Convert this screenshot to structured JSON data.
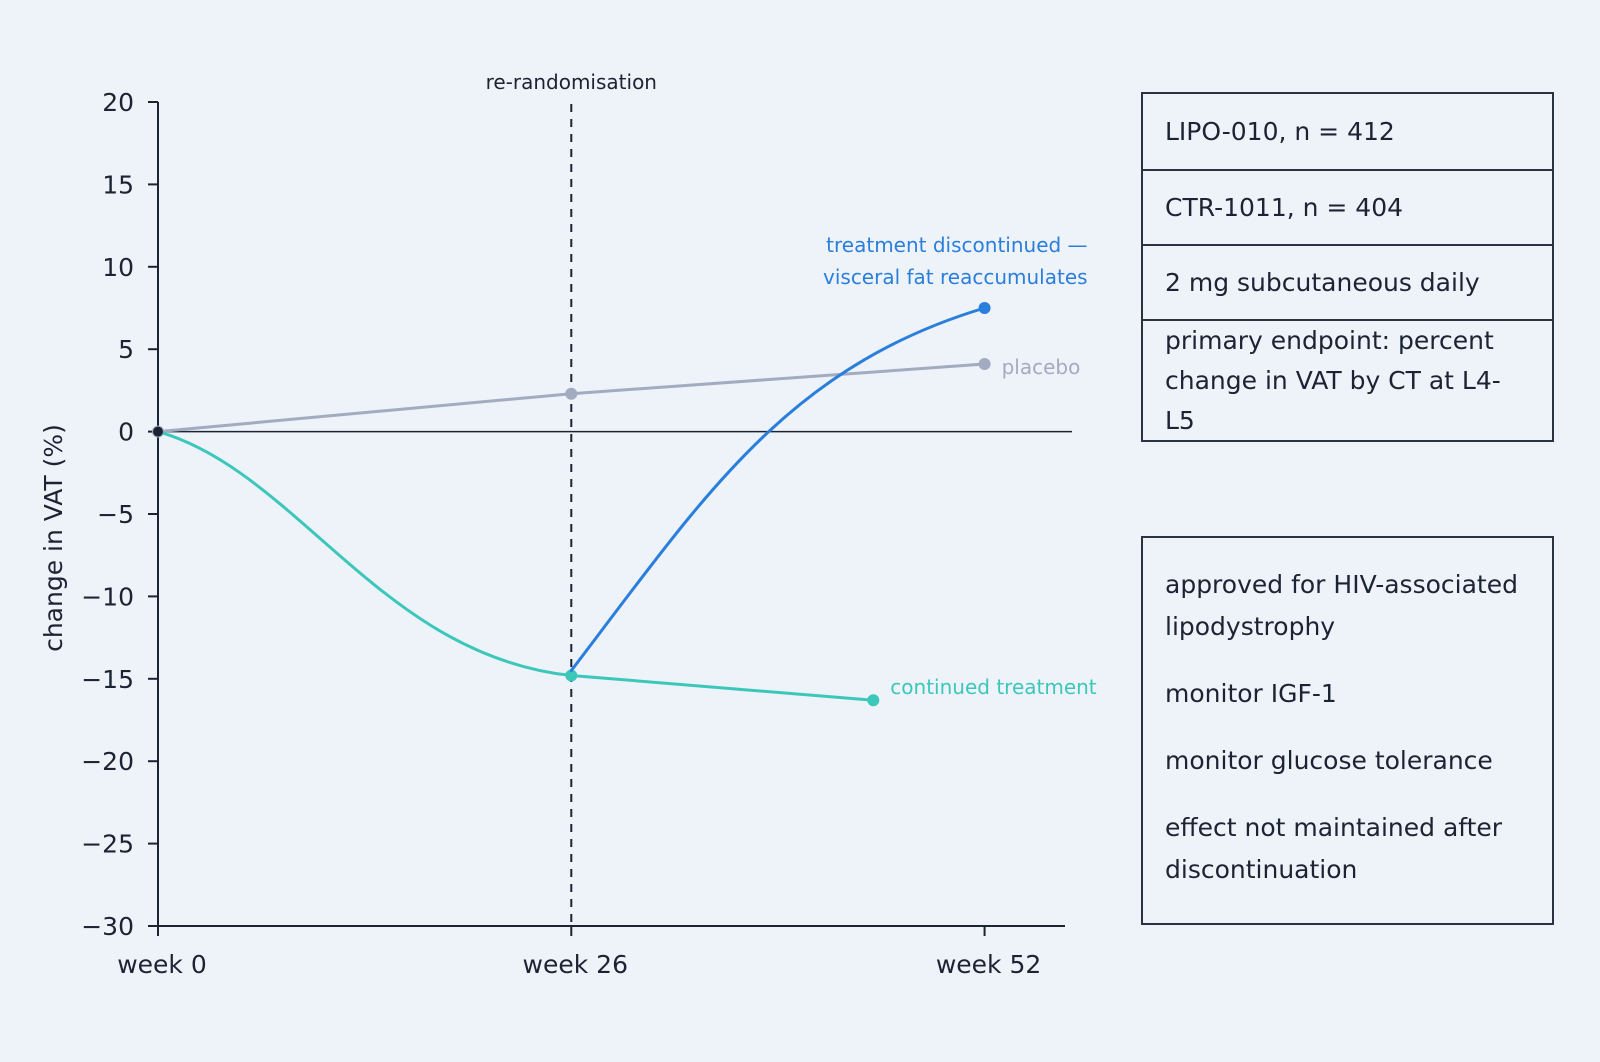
{
  "chart_data": {
    "type": "line",
    "ylabel": "change in VAT (%)",
    "xlabel": "",
    "ylim": [
      -30,
      20
    ],
    "yticks": [
      20,
      15,
      10,
      5,
      0,
      -5,
      -10,
      -15,
      -20,
      -25,
      -30
    ],
    "xticks": [
      {
        "label": "week 0",
        "x": 0
      },
      {
        "label": "week 26",
        "x": 26
      },
      {
        "label": "week 52",
        "x": 52
      }
    ],
    "xlim": [
      0,
      57.5
    ],
    "grid": false,
    "vline": {
      "x": 26,
      "label": "re-randomisation"
    },
    "series": [
      {
        "name": "placebo",
        "color": "#a3abc0",
        "points": [
          [
            0,
            0
          ],
          [
            26,
            2.3
          ],
          [
            52,
            4.1
          ]
        ]
      },
      {
        "name": "continued treatment",
        "color": "#3cc7bb",
        "points": [
          [
            0,
            0
          ],
          [
            26,
            -14.8
          ],
          [
            45,
            -16.3
          ]
        ]
      },
      {
        "name": "treatment discontinued — visceral fat reaccumulates",
        "label_lines": [
          "treatment discontinued —",
          "visceral fat reaccumulates"
        ],
        "color": "#2a7fdc",
        "points": [
          [
            26,
            -14.5
          ],
          [
            52,
            7.5
          ]
        ]
      }
    ]
  },
  "trial_info": {
    "rows": [
      "LIPO-010, n = 412",
      "CTR-1011, n = 404",
      "2 mg subcutaneous daily",
      "primary endpoint: percent change in VAT by CT at L4-L5"
    ]
  },
  "notes": [
    "approved for HIV-associated lipodystrophy",
    "monitor IGF-1",
    "monitor glucose tolerance",
    "effect not maintained after discontinuation"
  ]
}
